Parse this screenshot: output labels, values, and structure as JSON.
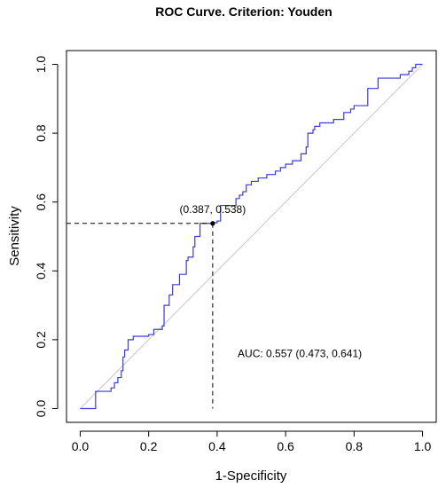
{
  "chart_data": {
    "type": "line",
    "title": "ROC Curve. Criterion: Youden",
    "xlabel": "1-Specificity",
    "ylabel": "Sensitivity",
    "xlim": [
      -0.04,
      1.04
    ],
    "ylim": [
      -0.04,
      1.04
    ],
    "x_ticks": [
      0.0,
      0.2,
      0.4,
      0.6,
      0.8,
      1.0
    ],
    "x_tick_labels": [
      "0.0",
      "0.2",
      "0.4",
      "0.6",
      "0.8",
      "1.0"
    ],
    "y_ticks": [
      0.0,
      0.2,
      0.4,
      0.6,
      0.8,
      1.0
    ],
    "y_tick_labels": [
      "0.0",
      "0.2",
      "0.4",
      "0.6",
      "0.8",
      "1.0"
    ],
    "grid": false,
    "series": [
      {
        "color": "#3b3bd9",
        "style": "step",
        "x": [
          0.0,
          0.045,
          0.045,
          0.09,
          0.09,
          0.1,
          0.1,
          0.11,
          0.11,
          0.12,
          0.12,
          0.125,
          0.125,
          0.13,
          0.13,
          0.14,
          0.14,
          0.155,
          0.155,
          0.2,
          0.2,
          0.215,
          0.215,
          0.24,
          0.24,
          0.245,
          0.245,
          0.26,
          0.26,
          0.27,
          0.27,
          0.29,
          0.29,
          0.31,
          0.31,
          0.315,
          0.315,
          0.33,
          0.33,
          0.335,
          0.335,
          0.35,
          0.35,
          0.387,
          0.387,
          0.4,
          0.4,
          0.41,
          0.41,
          0.455,
          0.455,
          0.465,
          0.465,
          0.475,
          0.475,
          0.485,
          0.485,
          0.5,
          0.5,
          0.52,
          0.52,
          0.545,
          0.545,
          0.57,
          0.57,
          0.585,
          0.585,
          0.6,
          0.6,
          0.62,
          0.62,
          0.645,
          0.645,
          0.66,
          0.66,
          0.665,
          0.665,
          0.68,
          0.68,
          0.685,
          0.685,
          0.7,
          0.7,
          0.74,
          0.74,
          0.77,
          0.77,
          0.79,
          0.79,
          0.8,
          0.8,
          0.84,
          0.84,
          0.87,
          0.87,
          0.935,
          0.935,
          0.96,
          0.96,
          0.97,
          0.97,
          0.98,
          0.98,
          1.0
        ],
        "y": [
          0.0,
          0.0,
          0.05,
          0.05,
          0.06,
          0.06,
          0.075,
          0.075,
          0.09,
          0.09,
          0.11,
          0.11,
          0.15,
          0.15,
          0.17,
          0.17,
          0.2,
          0.2,
          0.21,
          0.21,
          0.215,
          0.215,
          0.23,
          0.23,
          0.24,
          0.24,
          0.3,
          0.3,
          0.33,
          0.33,
          0.36,
          0.36,
          0.39,
          0.39,
          0.43,
          0.43,
          0.44,
          0.44,
          0.47,
          0.47,
          0.5,
          0.5,
          0.538,
          0.538,
          0.54,
          0.54,
          0.545,
          0.545,
          0.59,
          0.59,
          0.61,
          0.61,
          0.62,
          0.62,
          0.63,
          0.63,
          0.65,
          0.65,
          0.66,
          0.66,
          0.67,
          0.67,
          0.68,
          0.68,
          0.69,
          0.69,
          0.7,
          0.7,
          0.71,
          0.71,
          0.72,
          0.72,
          0.74,
          0.74,
          0.76,
          0.76,
          0.8,
          0.8,
          0.81,
          0.81,
          0.82,
          0.82,
          0.83,
          0.83,
          0.84,
          0.84,
          0.86,
          0.86,
          0.87,
          0.87,
          0.88,
          0.88,
          0.93,
          0.93,
          0.96,
          0.96,
          0.97,
          0.97,
          0.98,
          0.98,
          0.99,
          0.99,
          1.0,
          1.0
        ]
      }
    ],
    "diagonal": {
      "x": [
        0,
        1
      ],
      "y": [
        0,
        1
      ],
      "color": "#c8c8c8"
    },
    "cutoff_point": {
      "x": 0.387,
      "y": 0.538,
      "label": "(0.387, 0.538)"
    },
    "annotations": [
      {
        "text": "AUC: 0.557 (0.473, 0.641)",
        "x": 0.46,
        "y": 0.15
      }
    ]
  }
}
